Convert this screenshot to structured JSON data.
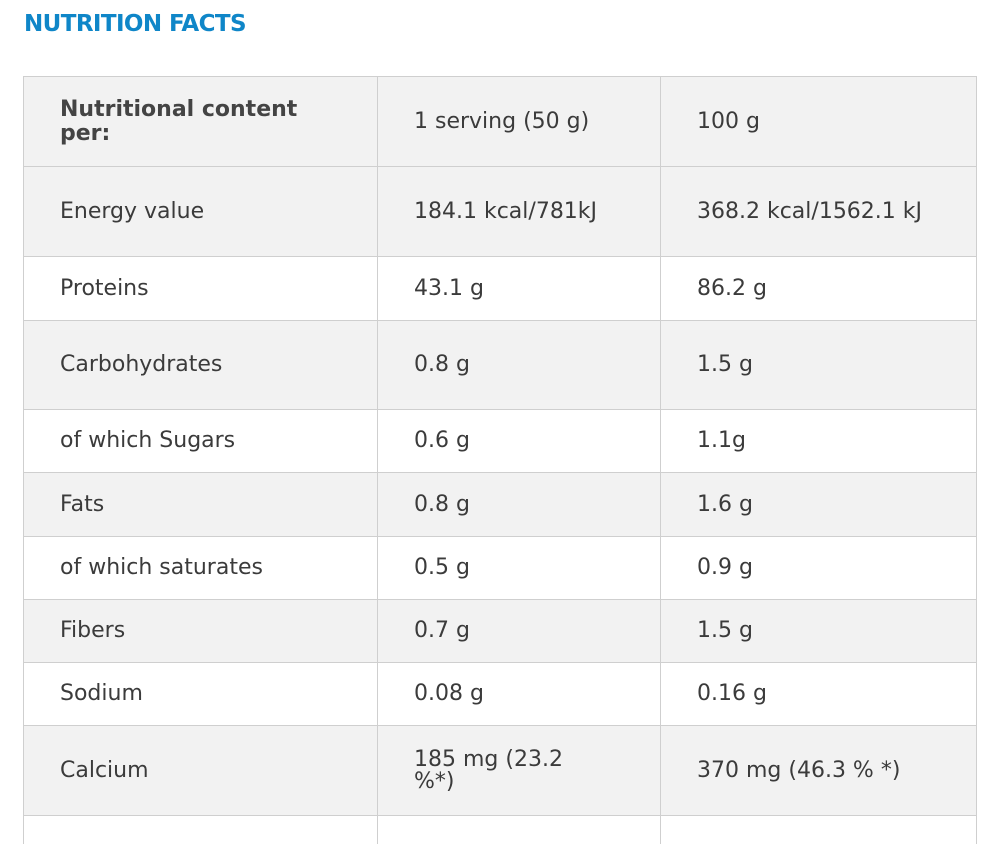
{
  "title": "NUTRITION FACTS",
  "table": {
    "header": [
      "Nutritional content per:",
      "1 serving (50 g)",
      "100 g"
    ],
    "rows": [
      [
        "Energy value",
        "184.1 kcal/781kJ",
        "368.2 kcal/1562.1 kJ"
      ],
      [
        "Proteins",
        "43.1 g",
        "86.2 g"
      ],
      [
        "Carbohydrates",
        "0.8 g",
        "1.5 g"
      ],
      [
        "of which Sugars",
        "0.6 g",
        "1.1g"
      ],
      [
        "Fats",
        "0.8 g",
        "1.6 g"
      ],
      [
        "of which saturates",
        "0.5 g",
        "0.9 g"
      ],
      [
        "Fibers",
        "0.7 g",
        "1.5 g"
      ],
      [
        "Sodium",
        "0.08 g",
        "0.16 g"
      ],
      [
        "Calcium",
        "185 mg (23.2 %*)",
        "370 mg (46.3 % *)"
      ]
    ]
  }
}
